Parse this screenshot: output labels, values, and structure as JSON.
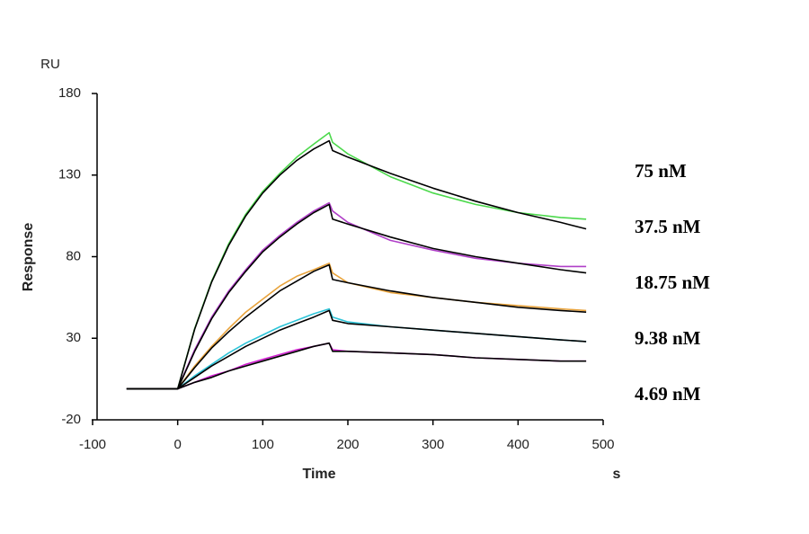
{
  "chart_data": {
    "type": "line",
    "y_unit_label": "RU",
    "ylabel": "Response",
    "xlabel": "Time",
    "x_unit_label": "s",
    "x": [
      -60,
      0,
      20,
      40,
      60,
      80,
      100,
      120,
      140,
      160,
      178,
      182,
      200,
      250,
      300,
      350,
      400,
      450,
      480
    ],
    "xlim": [
      -100,
      500
    ],
    "xticks": [
      -100,
      0,
      100,
      200,
      300,
      400,
      500
    ],
    "ylim": [
      -20,
      180
    ],
    "yticks": [
      -20,
      30,
      80,
      130,
      180
    ],
    "fit_color": "#000000",
    "series": [
      {
        "name": "75 nM",
        "color": "#4cd94c",
        "values": [
          -1,
          -1,
          36,
          65,
          88,
          106,
          120,
          131,
          141,
          149,
          156,
          150,
          143,
          129,
          119,
          112,
          107,
          104,
          103
        ],
        "fit_values": [
          -1,
          -1,
          35.6,
          64.5,
          87,
          105,
          119,
          130,
          139,
          146,
          151,
          145,
          141,
          131,
          122,
          114,
          107,
          101,
          97
        ]
      },
      {
        "name": "37.5 nM",
        "color": "#b03fc8",
        "values": [
          -1,
          -1,
          23,
          43,
          59,
          72,
          84,
          93,
          101,
          108,
          113,
          108,
          101,
          90,
          84,
          79,
          76,
          74,
          74
        ],
        "fit_values": [
          -1,
          -1,
          22,
          42,
          58,
          71,
          83,
          92,
          100,
          107,
          112,
          103,
          100,
          92,
          85,
          80,
          76,
          72,
          70
        ]
      },
      {
        "name": "18.75 nM",
        "color": "#e8a33c",
        "values": [
          -1,
          -1,
          13,
          25,
          36,
          46,
          54,
          62,
          68,
          72,
          76,
          70,
          64,
          58,
          55,
          52,
          50,
          48,
          47
        ],
        "fit_values": [
          -1,
          -1,
          12,
          24,
          34,
          43,
          51,
          59,
          65,
          71,
          75,
          66,
          64,
          59,
          55,
          52,
          49,
          47,
          46
        ]
      },
      {
        "name": "9.38 nM",
        "color": "#2ec4d8",
        "values": [
          -1,
          -1,
          7,
          14,
          21,
          27,
          32,
          37,
          41,
          45,
          48,
          43,
          40,
          37,
          35,
          33,
          31,
          29,
          28
        ],
        "fit_values": [
          -1,
          -1,
          6,
          13,
          19,
          25,
          30,
          35,
          39,
          43,
          47,
          41,
          39,
          37,
          35,
          33,
          31,
          29,
          28
        ]
      },
      {
        "name": "4.69 nM",
        "color": "#d020d0",
        "values": [
          -1,
          -1,
          3,
          7,
          10,
          14,
          17,
          20,
          23,
          25,
          27,
          23,
          22,
          21,
          20,
          18,
          17,
          16,
          16
        ],
        "fit_values": [
          -1,
          -1,
          3,
          6,
          10,
          13,
          16,
          19,
          22,
          25,
          27,
          22,
          22,
          21,
          20,
          18,
          17,
          16,
          16
        ]
      }
    ]
  }
}
